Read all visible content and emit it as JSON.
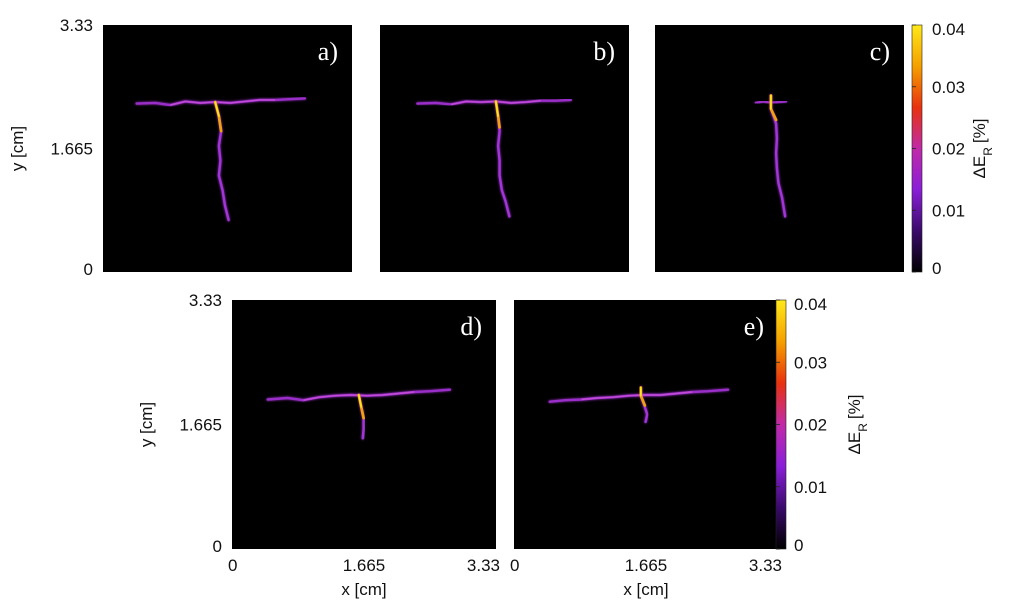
{
  "chart_data": {
    "type": "heatmap",
    "description_units": "cm",
    "xlim": [
      0,
      3.33
    ],
    "ylim": [
      0,
      3.33
    ],
    "x_ticks": [
      "0",
      "1.665",
      "3.33"
    ],
    "y_ticks": [
      "0",
      "1.665",
      "3.33"
    ],
    "xlabel": "x [cm]",
    "ylabel": "y [cm]",
    "colorbar": {
      "label_main": "ΔE",
      "label_sub": "R",
      "label_unit": "[%]",
      "range": [
        0,
        0.04
      ],
      "ticks": [
        "0",
        "0.01",
        "0.02",
        "0.03",
        "0.04"
      ],
      "colors": [
        "#000000",
        "#3a0a6b",
        "#8a1fd8",
        "#c12aa8",
        "#e8320e",
        "#f5a000",
        "#ffe81a"
      ]
    },
    "background": "#000000",
    "panels": [
      {
        "label": "a)",
        "horizontal_crack": [
          [
            0.45,
            2.27
          ],
          [
            0.7,
            2.28
          ],
          [
            0.9,
            2.25
          ],
          [
            1.1,
            2.3
          ],
          [
            1.3,
            2.28
          ],
          [
            1.5,
            2.29
          ],
          [
            1.7,
            2.28
          ],
          [
            1.9,
            2.3
          ],
          [
            2.1,
            2.32
          ],
          [
            2.3,
            2.32
          ],
          [
            2.5,
            2.33
          ],
          [
            2.7,
            2.34
          ]
        ],
        "vertical_crack": [
          [
            1.5,
            2.29
          ],
          [
            1.55,
            2.1
          ],
          [
            1.58,
            1.9
          ],
          [
            1.55,
            1.7
          ],
          [
            1.57,
            1.5
          ],
          [
            1.55,
            1.3
          ],
          [
            1.6,
            1.1
          ],
          [
            1.63,
            0.9
          ],
          [
            1.68,
            0.7
          ]
        ],
        "hot_segment": [
          [
            1.5,
            2.29
          ],
          [
            1.55,
            2.1
          ],
          [
            1.58,
            1.9
          ]
        ]
      },
      {
        "label": "b)",
        "horizontal_crack": [
          [
            0.5,
            2.27
          ],
          [
            0.75,
            2.28
          ],
          [
            0.95,
            2.26
          ],
          [
            1.15,
            2.3
          ],
          [
            1.35,
            2.29
          ],
          [
            1.55,
            2.3
          ],
          [
            1.75,
            2.28
          ],
          [
            1.95,
            2.29
          ],
          [
            2.15,
            2.31
          ],
          [
            2.35,
            2.31
          ],
          [
            2.55,
            2.32
          ]
        ],
        "vertical_crack": [
          [
            1.55,
            2.3
          ],
          [
            1.58,
            2.1
          ],
          [
            1.6,
            1.9
          ],
          [
            1.58,
            1.7
          ],
          [
            1.6,
            1.5
          ],
          [
            1.6,
            1.3
          ],
          [
            1.63,
            1.1
          ],
          [
            1.68,
            0.95
          ],
          [
            1.73,
            0.75
          ]
        ],
        "hot_segment": [
          [
            1.55,
            2.3
          ],
          [
            1.58,
            2.1
          ],
          [
            1.6,
            1.95
          ]
        ]
      },
      {
        "label": "c)",
        "horizontal_crack": [
          [
            1.35,
            2.28
          ],
          [
            1.45,
            2.3
          ],
          [
            1.55,
            2.28
          ],
          [
            1.65,
            2.29
          ],
          [
            1.75,
            2.3
          ]
        ],
        "vertical_crack": [
          [
            1.55,
            2.38
          ],
          [
            1.55,
            2.2
          ],
          [
            1.62,
            2.0
          ],
          [
            1.63,
            1.8
          ],
          [
            1.62,
            1.6
          ],
          [
            1.63,
            1.4
          ],
          [
            1.65,
            1.2
          ],
          [
            1.7,
            1.0
          ],
          [
            1.74,
            0.75
          ]
        ],
        "hot_segment": [
          [
            1.55,
            2.38
          ],
          [
            1.55,
            2.2
          ],
          [
            1.62,
            2.05
          ]
        ]
      },
      {
        "label": "d)",
        "horizontal_crack": [
          [
            0.45,
            2.0
          ],
          [
            0.7,
            2.02
          ],
          [
            0.9,
            1.99
          ],
          [
            1.1,
            2.03
          ],
          [
            1.3,
            2.05
          ],
          [
            1.5,
            2.06
          ],
          [
            1.7,
            2.05
          ],
          [
            1.9,
            2.06
          ],
          [
            2.1,
            2.08
          ],
          [
            2.3,
            2.1
          ],
          [
            2.5,
            2.11
          ],
          [
            2.75,
            2.13
          ]
        ],
        "vertical_crack": [
          [
            1.6,
            2.06
          ],
          [
            1.63,
            1.9
          ],
          [
            1.66,
            1.75
          ],
          [
            1.66,
            1.6
          ],
          [
            1.65,
            1.48
          ]
        ],
        "hot_segment": [
          [
            1.6,
            2.06
          ],
          [
            1.63,
            1.9
          ],
          [
            1.66,
            1.75
          ]
        ]
      },
      {
        "label": "e)",
        "horizontal_crack": [
          [
            0.45,
            1.97
          ],
          [
            0.65,
            1.99
          ],
          [
            0.85,
            2.0
          ],
          [
            1.05,
            2.02
          ],
          [
            1.25,
            2.03
          ],
          [
            1.45,
            2.05
          ],
          [
            1.65,
            2.06
          ],
          [
            1.85,
            2.06
          ],
          [
            2.05,
            2.08
          ],
          [
            2.25,
            2.1
          ],
          [
            2.45,
            2.11
          ],
          [
            2.7,
            2.13
          ]
        ],
        "vertical_crack": [
          [
            1.6,
            2.16
          ],
          [
            1.6,
            2.05
          ],
          [
            1.65,
            1.9
          ],
          [
            1.68,
            1.8
          ],
          [
            1.66,
            1.7
          ]
        ],
        "hot_segment": [
          [
            1.6,
            2.16
          ],
          [
            1.6,
            2.05
          ],
          [
            1.65,
            1.92
          ]
        ]
      }
    ]
  }
}
